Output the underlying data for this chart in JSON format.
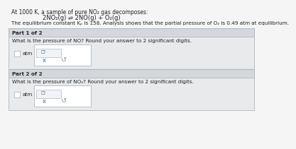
{
  "title_line1": "At 1000 K, a sample of pure NO₂ gas decomposes:",
  "reaction": "2NO₂(g) ⇌ 2NO(g) + O₂(g)",
  "description": "The equilibrium constant Kₚ is 158. Analysis shows that the partial pressure of O₂ is 0.49 atm at equilibrium.",
  "part1_header": "Part 1 of 2",
  "part1_question": "What is the pressure of NO? Round your answer to 2 significant digits.",
  "part1_unit": "atm",
  "part2_header": "Part 2 of 2",
  "part2_question": "What is the pressure of NO₂? Round your answer to 2 significant digits.",
  "part2_unit": "atm",
  "bg_color": "#f5f5f5",
  "panel_color": "#e8eaec",
  "header_color": "#d4d7db",
  "inner_panel_color": "#f0f4f8",
  "box_color": "#ffffff",
  "border_color": "#b0b8c0",
  "text_color": "#222222",
  "light_text": "#555555",
  "icon_color": "#7a9ab5"
}
